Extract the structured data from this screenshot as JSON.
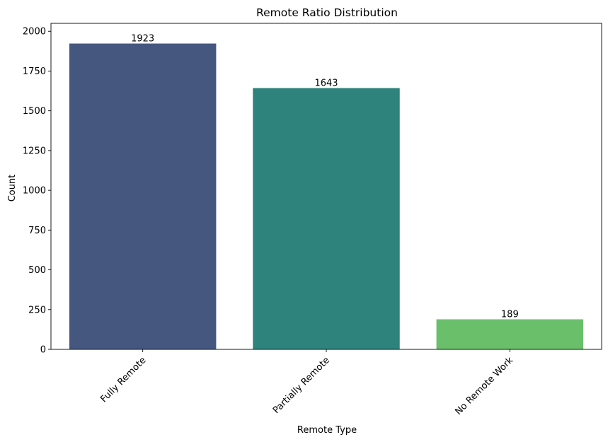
{
  "chart_data": {
    "type": "bar",
    "title": "Remote Ratio Distribution",
    "xlabel": "Remote Type",
    "ylabel": "Count",
    "categories": [
      "Fully Remote",
      "Partially Remote",
      "No Remote Work"
    ],
    "values": [
      1923,
      1643,
      189
    ],
    "colors": [
      "#46577f",
      "#2e837c",
      "#6abf6b"
    ],
    "ylim": [
      0,
      2050
    ],
    "yticks": [
      0,
      250,
      500,
      750,
      1000,
      1250,
      1500,
      1750,
      2000
    ],
    "grid": false,
    "legend": "none",
    "x_tick_rotation": 45
  }
}
